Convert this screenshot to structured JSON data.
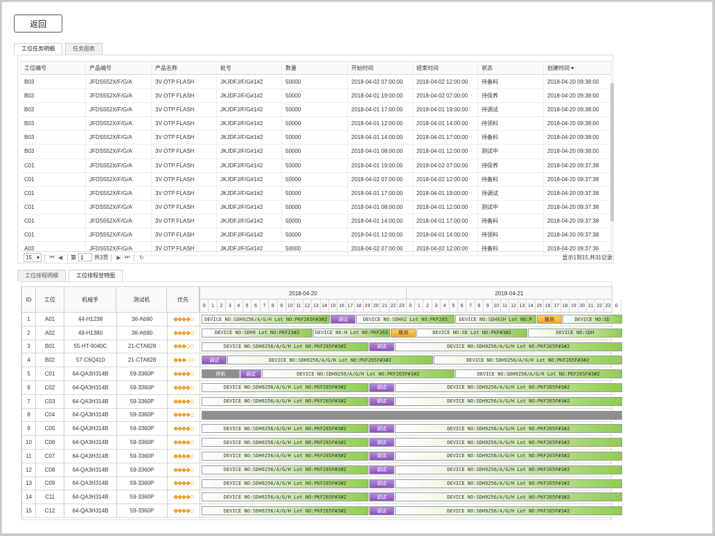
{
  "back_label": "返回",
  "top_tabs": [
    {
      "label": "工位任务明细",
      "active": true
    },
    {
      "label": "任务图表",
      "active": false
    }
  ],
  "grid": {
    "columns": [
      "工位编号",
      "产品编号",
      "产品名称",
      "批号",
      "数量",
      "开始时间",
      "结束时间",
      "状态",
      "创建时间 ▾"
    ],
    "rows": [
      [
        "B03",
        "JFDS552X/F/G/A",
        "3V OTP FLASH",
        "JKJDFJ/F/G#1#2",
        "50000",
        "2018-04-02 07:00:00",
        "2018-04-02 12:00:00",
        "待备料",
        "2018-04-20 09:38:00"
      ],
      [
        "B03",
        "JFDS552X/F/G/A",
        "3V OTP FLASH",
        "JKJDFJ/F/G#1#2",
        "50000",
        "2018-04-01 19:00:00",
        "2018-04-02 07:00:00",
        "待保养",
        "2018-04-20 09:38:00"
      ],
      [
        "B03",
        "JFDS552X/F/G/A",
        "3V OTP FLASH",
        "JKJDFJ/F/G#1#2",
        "50000",
        "2018-04-01 17:00:00",
        "2018-04-01 19:00:00",
        "待调试",
        "2018-04-20 09:38:00"
      ],
      [
        "B03",
        "JFDS552X/F/G/A",
        "3V OTP FLASH",
        "JKJDFJ/F/G#1#2",
        "50000",
        "2018-04-01 12:00:00",
        "2018-04-01 14:00:00",
        "待领料",
        "2018-04-20 09:38:00"
      ],
      [
        "B03",
        "JFDS552X/F/G/A",
        "3V OTP FLASH",
        "JKJDFJ/F/G#1#2",
        "50000",
        "2018-04-01 14:00:00",
        "2018-04-01 17:00:00",
        "待备料",
        "2018-04-20 09:38:00"
      ],
      [
        "B03",
        "JFDS552X/F/G/A",
        "3V OTP FLASH",
        "JKJDFJ/F/G#1#2",
        "50000",
        "2018-04-01 08:00:00",
        "2018-04-01 12:00:00",
        "测试中",
        "2018-04-20 09:38:00"
      ],
      [
        "C01",
        "JFDS552X/F/G/A",
        "3V OTP FLASH",
        "JKJDFJ/F/G#1#2",
        "50000",
        "2018-04-01 19:00:00",
        "2018-04-02 07:00:00",
        "待保养",
        "2018-04-20 09:37:38"
      ],
      [
        "C01",
        "JFDS552X/F/G/A",
        "3V OTP FLASH",
        "JKJDFJ/F/G#1#2",
        "50000",
        "2018-04-02 07:00:00",
        "2018-04-02 12:00:00",
        "待备料",
        "2018-04-20 09:37:38"
      ],
      [
        "C01",
        "JFDS552X/F/G/A",
        "3V OTP FLASH",
        "JKJDFJ/F/G#1#2",
        "50000",
        "2018-04-01 17:00:00",
        "2018-04-01 19:00:00",
        "待调试",
        "2018-04-20 09:37:38"
      ],
      [
        "C01",
        "JFDS552X/F/G/A",
        "3V OTP FLASH",
        "JKJDFJ/F/G#1#2",
        "50000",
        "2018-04-01 08:00:00",
        "2018-04-01 12:00:00",
        "测试中",
        "2018-04-20 09:37:38"
      ],
      [
        "C01",
        "JFDS552X/F/G/A",
        "3V OTP FLASH",
        "JKJDFJ/F/G#1#2",
        "50000",
        "2018-04-01 14:00:00",
        "2018-04-01 17:00:00",
        "待备料",
        "2018-04-20 09:37:38"
      ],
      [
        "C01",
        "JFDS552X/F/G/A",
        "3V OTP FLASH",
        "JKJDFJ/F/G#1#2",
        "50000",
        "2018-04-01 12:00:00",
        "2018-04-01 14:00:00",
        "待领料",
        "2018-04-20 09:37:38"
      ],
      [
        "A03",
        "JFDS552X/F/G/A",
        "3V OTP FLASH",
        "JKJDFJ/F/G#1#2",
        "50000",
        "2018-04-02 07:00:00",
        "2018-04-02 12:00:00",
        "待备料",
        "2018-04-20 09:37:36"
      ]
    ]
  },
  "pager": {
    "page_size": "15",
    "page_label": "第",
    "page_value": "1",
    "total_pages": "共3页",
    "info": "显示1到15,共31记录"
  },
  "gantt_tabs": [
    {
      "label": "工位排程明细",
      "active": false
    },
    {
      "label": "工位排程甘特图",
      "active": true
    }
  ],
  "gantt": {
    "left_columns": [
      "ID",
      "工位",
      "机械手",
      "测试机",
      "优先"
    ],
    "dates": [
      "2018-04-20",
      "2018-04-21"
    ],
    "hours": [
      "0",
      "1",
      "2",
      "3",
      "4",
      "5",
      "6",
      "7",
      "8",
      "9",
      "10",
      "11",
      "12",
      "13",
      "14",
      "15",
      "16",
      "17",
      "18",
      "19",
      "20",
      "21",
      "22",
      "23"
    ],
    "rows": [
      {
        "id": "1",
        "station": "A01",
        "handler": "44-H1238",
        "tester": "36-A690",
        "priority": "◆◆◆◆◇",
        "bars": [
          {
            "type": "device",
            "start": 0,
            "end": 15,
            "text": "DEVICE NO:SDH9256/A/G/H Lot NO:PKF265F#3#2"
          },
          {
            "type": "tune",
            "start": 15,
            "end": 18,
            "text": "调试"
          },
          {
            "type": "device",
            "start": 18,
            "end": 29.5,
            "text": "DEVICE NO:SDH92 Lot NO:PKF265"
          },
          {
            "type": "device",
            "start": 29.5,
            "end": 39,
            "text": "DEVICE NO:SDH92H Lot NO:P"
          },
          {
            "type": "swap",
            "start": 39,
            "end": 42,
            "text": "换测"
          },
          {
            "type": "device",
            "start": 42,
            "end": 49,
            "text": "DEVICE NO:SD"
          }
        ]
      },
      {
        "id": "2",
        "station": "A02",
        "handler": "49-H1380",
        "tester": "36-A690",
        "priority": "◆◆◆◆◇",
        "bars": [
          {
            "type": "device",
            "start": 0,
            "end": 13,
            "text": "DEVICE NO:SDH9 Lot NO:PKF23#2"
          },
          {
            "type": "device",
            "start": 13,
            "end": 22,
            "text": "DEVICE NO:H Lot NO:PKF265"
          },
          {
            "type": "swap",
            "start": 22,
            "end": 25,
            "text": "换测"
          },
          {
            "type": "device",
            "start": 25,
            "end": 38,
            "text": "DEVICE NO:SD Lot NO:PKF#3#2"
          },
          {
            "type": "device",
            "start": 38,
            "end": 49,
            "text": "DEVICE NO:SDH"
          }
        ]
      },
      {
        "id": "3",
        "station": "B01",
        "handler": "55-HT-9040C",
        "tester": "21-CTA828",
        "priority": "◆◆◆◇◇",
        "bars": [
          {
            "type": "device",
            "start": 0,
            "end": 19.5,
            "text": "DEVICE NO:SDH9256/A/G/H Lot NO:PKF265F#3#2"
          },
          {
            "type": "tune",
            "start": 19.5,
            "end": 22.5,
            "text": "调试"
          },
          {
            "type": "device",
            "start": 22.5,
            "end": 49,
            "text": "DEVICE NO:SDH9256/A/G/H Lot NO:PKF265F#3#2"
          }
        ]
      },
      {
        "id": "4",
        "station": "B02",
        "handler": "57-C6Q410",
        "tester": "21-CTA828",
        "priority": "◆◆◆◇◇",
        "bars": [
          {
            "type": "tune",
            "start": 0,
            "end": 3,
            "text": "调试"
          },
          {
            "type": "device",
            "start": 3,
            "end": 27,
            "text": "DEVICE NO:SDH9256/A/G/H Lot NO:PKF265F#3#2"
          },
          {
            "type": "device",
            "start": 27,
            "end": 49,
            "text": "DEVICE NO:SDH9256/A/G/H Lot NO:PKF265F#3#2"
          }
        ]
      },
      {
        "id": "5",
        "station": "C01",
        "handler": "64-QA3H314B",
        "tester": "59-3360P",
        "priority": "◆◆◆◆◇",
        "bars": [
          {
            "type": "stop",
            "start": 0,
            "end": 4.5,
            "text": "停机"
          },
          {
            "type": "tune",
            "start": 4.5,
            "end": 7,
            "text": "调试"
          },
          {
            "type": "device",
            "start": 7,
            "end": 29.5,
            "text": "DEVICE NO:SDH9256/A/G/H Lot NO:PKF265F#3#2"
          },
          {
            "type": "device",
            "start": 29.5,
            "end": 49,
            "text": "DEVICE NO:SDH9256/A/G/H Lot NO:PKF265F#3#2"
          }
        ]
      },
      {
        "id": "6",
        "station": "C02",
        "handler": "64-QA3H314B",
        "tester": "59-3360P",
        "priority": "◆◆◆◆◇",
        "bars": [
          {
            "type": "device",
            "start": 0,
            "end": 19.5,
            "text": "DEVICE NO:SDH9256/A/G/H Lot NO:PKF265F#3#2"
          },
          {
            "type": "tune",
            "start": 19.5,
            "end": 22.5,
            "text": "调试"
          },
          {
            "type": "device",
            "start": 22.5,
            "end": 49,
            "text": "DEVICE NO:SDH9256/A/G/H Lot NO:PKF265F#3#2"
          }
        ]
      },
      {
        "id": "7",
        "station": "C03",
        "handler": "64-QA3H314B",
        "tester": "59-3360P",
        "priority": "◆◆◆◆◇",
        "bars": [
          {
            "type": "device",
            "start": 0,
            "end": 19.5,
            "text": "DEVICE NO:SDH9256/A/G/H Lot NO:PKF265F#3#2"
          },
          {
            "type": "tune",
            "start": 19.5,
            "end": 22.5,
            "text": "调试"
          },
          {
            "type": "device",
            "start": 22.5,
            "end": 49,
            "text": "DEVICE NO:SDH9256/A/G/H Lot NO:PKF265F#3#2"
          }
        ]
      },
      {
        "id": "8",
        "station": "C04",
        "handler": "64-QA3H314B",
        "tester": "59-3360P",
        "priority": "◆◆◆◆◇",
        "bars": [
          {
            "type": "full",
            "start": 0,
            "end": 49,
            "text": ""
          }
        ]
      },
      {
        "id": "9",
        "station": "C05",
        "handler": "64-QA3H314B",
        "tester": "59-3360P",
        "priority": "◆◆◆◆◇",
        "bars": [
          {
            "type": "device",
            "start": 0,
            "end": 19.5,
            "text": "DEVICE NO:SDH9256/A/G/H Lot NO:PKF265F#3#2"
          },
          {
            "type": "tune",
            "start": 19.5,
            "end": 22.5,
            "text": "调试"
          },
          {
            "type": "device",
            "start": 22.5,
            "end": 49,
            "text": "DEVICE NO:SDH9256/A/G/H Lot NO:PKF265F#3#2"
          }
        ]
      },
      {
        "id": "10",
        "station": "C06",
        "handler": "64-QA3H314B",
        "tester": "59-3360P",
        "priority": "◆◆◆◆◇",
        "bars": [
          {
            "type": "device",
            "start": 0,
            "end": 19.5,
            "text": "DEVICE NO:SDH9256/A/G/H Lot NO:PKF265F#3#2"
          },
          {
            "type": "tune",
            "start": 19.5,
            "end": 22.5,
            "text": "调试"
          },
          {
            "type": "device",
            "start": 22.5,
            "end": 49,
            "text": "DEVICE NO:SDH9256/A/G/H Lot NO:PKF265F#3#2"
          }
        ]
      },
      {
        "id": "11",
        "station": "C07",
        "handler": "64-QA3H314B",
        "tester": "59-3360P",
        "priority": "◆◆◆◆◇",
        "bars": [
          {
            "type": "device",
            "start": 0,
            "end": 19.5,
            "text": "DEVICE NO:SDH9256/A/G/H Lot NO:PKF265F#3#2"
          },
          {
            "type": "tune",
            "start": 19.5,
            "end": 22.5,
            "text": "调试"
          },
          {
            "type": "device",
            "start": 22.5,
            "end": 49,
            "text": "DEVICE NO:SDH9256/A/G/H Lot NO:PKF265F#3#2"
          }
        ]
      },
      {
        "id": "12",
        "station": "C08",
        "handler": "64-QA3H314B",
        "tester": "59-3360P",
        "priority": "◆◆◆◆◇",
        "bars": [
          {
            "type": "device",
            "start": 0,
            "end": 19.5,
            "text": "DEVICE NO:SDH9256/A/G/H Lot NO:PKF265F#3#2"
          },
          {
            "type": "tune",
            "start": 19.5,
            "end": 22.5,
            "text": "调试"
          },
          {
            "type": "device",
            "start": 22.5,
            "end": 49,
            "text": "DEVICE NO:SDH9256/A/G/H Lot NO:PKF265F#3#2"
          }
        ]
      },
      {
        "id": "13",
        "station": "C09",
        "handler": "64-QA3H314B",
        "tester": "59-3360P",
        "priority": "◆◆◆◆◇",
        "bars": [
          {
            "type": "device",
            "start": 0,
            "end": 19.5,
            "text": "DEVICE NO:SDH9256/A/G/H Lot NO:PKF265F#3#2"
          },
          {
            "type": "tune",
            "start": 19.5,
            "end": 22.5,
            "text": "调试"
          },
          {
            "type": "device",
            "start": 22.5,
            "end": 49,
            "text": "DEVICE NO:SDH9256/A/G/H Lot NO:PKF265F#3#2"
          }
        ]
      },
      {
        "id": "14",
        "station": "C11",
        "handler": "64-QA3H314B",
        "tester": "59-3360P",
        "priority": "◆◆◆◆◇",
        "bars": [
          {
            "type": "device",
            "start": 0,
            "end": 19.5,
            "text": "DEVICE NO:SDH9256/A/G/H Lot NO:PKF265F#3#2"
          },
          {
            "type": "tune",
            "start": 19.5,
            "end": 22.5,
            "text": "调试"
          },
          {
            "type": "device",
            "start": 22.5,
            "end": 49,
            "text": "DEVICE NO:SDH9256/A/G/H Lot NO:PKF265F#3#2"
          }
        ]
      },
      {
        "id": "15",
        "station": "C12",
        "handler": "64-QA3H314B",
        "tester": "59-3360P",
        "priority": "◆◆◆◆◇",
        "bars": [
          {
            "type": "device",
            "start": 0,
            "end": 19.5,
            "text": "DEVICE NO:SDH9256/A/G/H Lot NO:PKF265F#3#2"
          },
          {
            "type": "tune",
            "start": 19.5,
            "end": 22.5,
            "text": "调试"
          },
          {
            "type": "device",
            "start": 22.5,
            "end": 49,
            "text": "DEVICE NO:SDH9256/A/G/H Lot NO:PKF265F#3#2"
          }
        ]
      }
    ]
  }
}
